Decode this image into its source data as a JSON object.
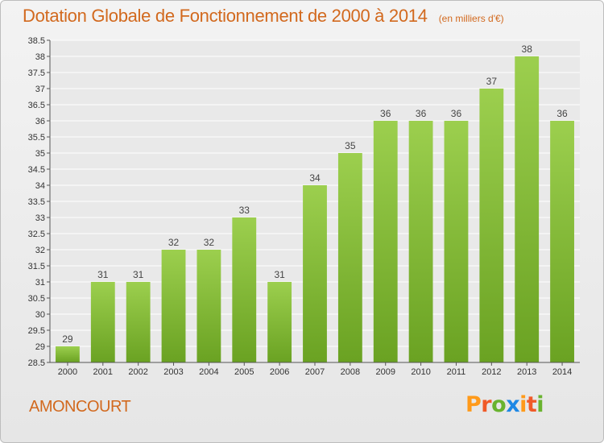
{
  "header": {
    "title": "Dotation Globale de Fonctionnement de 2000 à 2014",
    "unit": "(en milliers d'€)"
  },
  "footer": {
    "commune": "AMONCOURT",
    "logo_letters": [
      "P",
      "r",
      "o",
      "x",
      "i",
      "t",
      "i"
    ],
    "logo_colors": [
      "#ff9a1a",
      "#f05a28",
      "#69b32f",
      "#1e88e5",
      "#ff9a1a",
      "#f05a28",
      "#69b32f"
    ]
  },
  "colors": {
    "title": "#d2691e",
    "bar_light": "#9ccf4e",
    "bar_dark": "#6aa222",
    "grid": "#ffffff",
    "axis": "#555555"
  },
  "chart_data": {
    "type": "bar",
    "title": "Dotation Globale de Fonctionnement de 2000 à 2014",
    "subtitle": "(en milliers d'€)",
    "xlabel": "",
    "ylabel": "",
    "categories": [
      "2000",
      "2001",
      "2002",
      "2003",
      "2004",
      "2005",
      "2006",
      "2007",
      "2008",
      "2009",
      "2010",
      "2011",
      "2012",
      "2013",
      "2014"
    ],
    "values": [
      29,
      31,
      31,
      32,
      32,
      33,
      31,
      34,
      35,
      36,
      36,
      36,
      37,
      38,
      36
    ],
    "value_labels": [
      "29",
      "31",
      "31",
      "32",
      "32",
      "33",
      "31",
      "34",
      "35",
      "36",
      "36",
      "36",
      "37",
      "38",
      "36"
    ],
    "ylim": [
      28.5,
      38.5
    ],
    "yticks": [
      "28.5",
      "29",
      "29.5",
      "30",
      "30.5",
      "31",
      "31.5",
      "32",
      "32.5",
      "33",
      "33.5",
      "34",
      "34.5",
      "35",
      "35.5",
      "36",
      "36.5",
      "37",
      "37.5",
      "38",
      "38.5"
    ],
    "grid": true
  }
}
